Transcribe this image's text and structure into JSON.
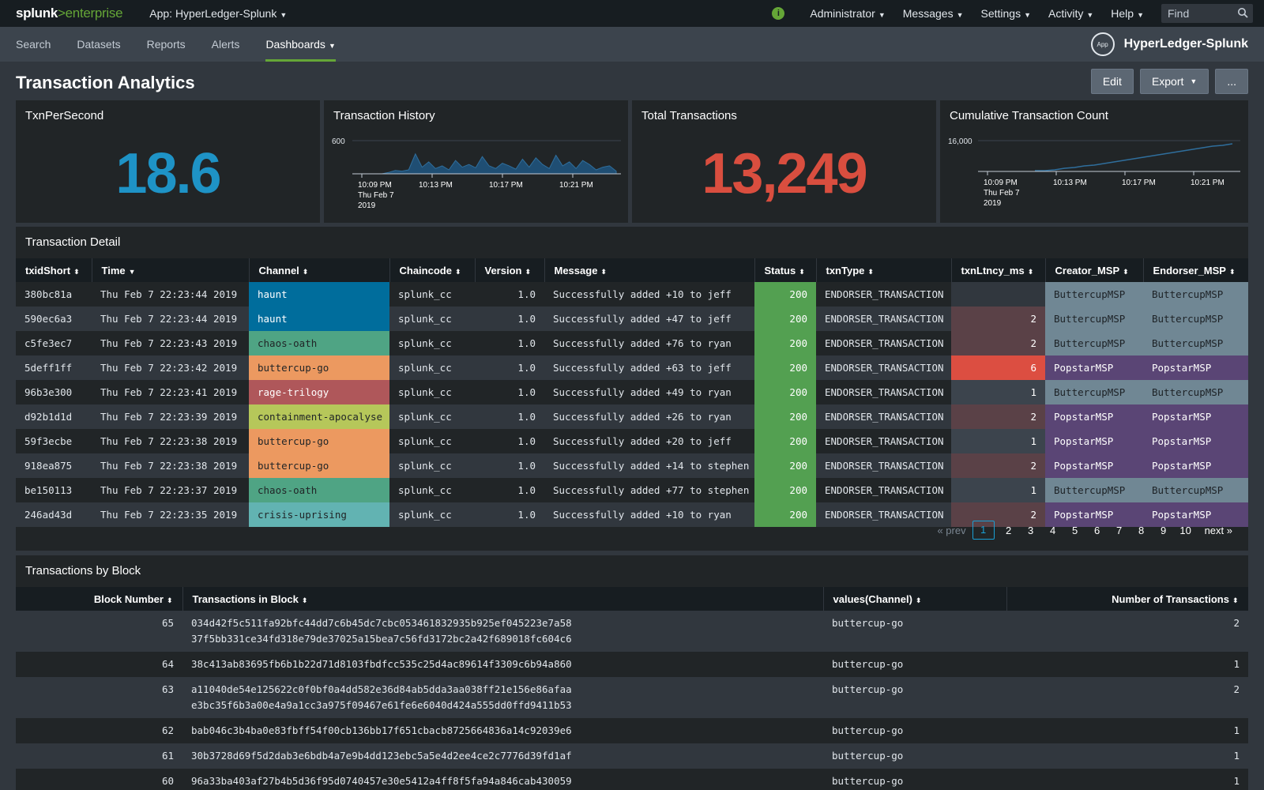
{
  "topbar": {
    "logo_main": "splunk",
    "logo_sep": ">",
    "logo_suffix": "enterprise",
    "app_menu": "App: HyperLedger-Splunk",
    "menus": [
      "Administrator",
      "Messages",
      "Settings",
      "Activity",
      "Help"
    ],
    "find_placeholder": "Find",
    "info_glyph": "i"
  },
  "nav": {
    "items": [
      "Search",
      "Datasets",
      "Reports",
      "Alerts",
      "Dashboards"
    ],
    "active_index": 4,
    "app_icon_label": "App",
    "app_name": "HyperLedger-Splunk"
  },
  "page": {
    "title": "Transaction Analytics",
    "buttons": {
      "edit": "Edit",
      "export": "Export",
      "more": "..."
    }
  },
  "panels": {
    "tps": {
      "title": "TxnPerSecond",
      "value": "18.6",
      "color": "#1e93c6"
    },
    "history": {
      "title": "Transaction History",
      "ytick": "600",
      "xticks": [
        "10:09 PM",
        "10:13 PM",
        "10:17 PM",
        "10:21 PM"
      ],
      "date_line1": "Thu Feb 7",
      "date_line2": "2019",
      "fill_color": "#1f4e73"
    },
    "total": {
      "title": "Total Transactions",
      "value": "13,249",
      "color": "#d94e3f"
    },
    "cumulative": {
      "title": "Cumulative Transaction Count",
      "ytick": "16,000",
      "xticks": [
        "10:09 PM",
        "10:13 PM",
        "10:17 PM",
        "10:21 PM"
      ],
      "date_line1": "Thu Feb 7",
      "date_line2": "2019",
      "line_color": "#2f6e9c"
    }
  },
  "detail": {
    "title": "Transaction Detail",
    "columns": [
      "txidShort",
      "Time",
      "Channel",
      "Chaincode",
      "Version",
      "Message",
      "Status",
      "txnType",
      "txnLtncy_ms",
      "Creator_MSP",
      "Endorser_MSP"
    ],
    "rows": [
      [
        "380bc81a",
        "Thu Feb  7 22:23:44 2019",
        "haunt",
        "splunk_cc",
        "1.0",
        "Successfully added +10 to jeff",
        "200",
        "ENDORSER_TRANSACTION",
        "",
        "ButtercupMSP",
        "ButtercupMSP"
      ],
      [
        "590ec6a3",
        "Thu Feb  7 22:23:44 2019",
        "haunt",
        "splunk_cc",
        "1.0",
        "Successfully added +47 to jeff",
        "200",
        "ENDORSER_TRANSACTION",
        "2",
        "ButtercupMSP",
        "ButtercupMSP"
      ],
      [
        "c5fe3ec7",
        "Thu Feb  7 22:23:43 2019",
        "chaos-oath",
        "splunk_cc",
        "1.0",
        "Successfully added +76 to ryan",
        "200",
        "ENDORSER_TRANSACTION",
        "2",
        "ButtercupMSP",
        "ButtercupMSP"
      ],
      [
        "5deff1ff",
        "Thu Feb  7 22:23:42 2019",
        "buttercup-go",
        "splunk_cc",
        "1.0",
        "Successfully added +63 to jeff",
        "200",
        "ENDORSER_TRANSACTION",
        "6",
        "PopstarMSP",
        "PopstarMSP"
      ],
      [
        "96b3e300",
        "Thu Feb  7 22:23:41 2019",
        "rage-trilogy",
        "splunk_cc",
        "1.0",
        "Successfully added +49 to ryan",
        "200",
        "ENDORSER_TRANSACTION",
        "1",
        "ButtercupMSP",
        "ButtercupMSP"
      ],
      [
        "d92b1d1d",
        "Thu Feb  7 22:23:39 2019",
        "containment-apocalyse",
        "splunk_cc",
        "1.0",
        "Successfully added +26 to ryan",
        "200",
        "ENDORSER_TRANSACTION",
        "2",
        "PopstarMSP",
        "PopstarMSP"
      ],
      [
        "59f3ecbe",
        "Thu Feb  7 22:23:38 2019",
        "buttercup-go",
        "splunk_cc",
        "1.0",
        "Successfully added +20 to jeff",
        "200",
        "ENDORSER_TRANSACTION",
        "1",
        "PopstarMSP",
        "PopstarMSP"
      ],
      [
        "918ea875",
        "Thu Feb  7 22:23:38 2019",
        "buttercup-go",
        "splunk_cc",
        "1.0",
        "Successfully added +14 to stephen",
        "200",
        "ENDORSER_TRANSACTION",
        "2",
        "PopstarMSP",
        "PopstarMSP"
      ],
      [
        "be150113",
        "Thu Feb  7 22:23:37 2019",
        "chaos-oath",
        "splunk_cc",
        "1.0",
        "Successfully added +77 to stephen",
        "200",
        "ENDORSER_TRANSACTION",
        "1",
        "ButtercupMSP",
        "ButtercupMSP"
      ],
      [
        "246ad43d",
        "Thu Feb  7 22:23:35 2019",
        "crisis-uprising",
        "splunk_cc",
        "1.0",
        "Successfully added +10 to ryan",
        "200",
        "ENDORSER_TRANSACTION",
        "2",
        "PopstarMSP",
        "PopstarMSP"
      ]
    ],
    "channel_colors": {
      "haunt": [
        "#006d9c",
        "#ffffff"
      ],
      "chaos-oath": [
        "#4fa484",
        "#212527"
      ],
      "buttercup-go": [
        "#ec9960",
        "#212527"
      ],
      "rage-trilogy": [
        "#af575a",
        "#ffffff"
      ],
      "containment-apocalyse": [
        "#b6c75a",
        "#212527"
      ],
      "crisis-uprising": [
        "#62b3b2",
        "#212527"
      ]
    },
    "status_color": "#53a051",
    "latency_colors": {
      "": "#31373e",
      "1": "#3c444d",
      "2": "#5a4147",
      "6": "#dc4e41"
    },
    "msp_colors": {
      "ButtercupMSP": [
        "#708794",
        "#1d2226"
      ],
      "PopstarMSP": [
        "#5a4575",
        "#ffffff"
      ]
    },
    "pagination": {
      "prev": "« prev",
      "pages": [
        "1",
        "2",
        "3",
        "4",
        "5",
        "6",
        "7",
        "8",
        "9",
        "10"
      ],
      "active": "1",
      "next": "next »"
    }
  },
  "blocks": {
    "title": "Transactions by Block",
    "columns": [
      "Block Number",
      "Transactions in Block",
      "values(Channel)",
      "Number of Transactions"
    ],
    "rows": [
      {
        "block": "65",
        "txns": [
          "034d42f5c511fa92bfc44dd7c6b45dc7cbc053461832935b925ef045223e7a58",
          "37f5bb331ce34fd318e79de37025a15bea7c56fd3172bc2a42f689018fc604c6"
        ],
        "channel": "buttercup-go",
        "count": "2"
      },
      {
        "block": "64",
        "txns": [
          "38c413ab83695fb6b1b22d71d8103fbdfcc535c25d4ac89614f3309c6b94a860"
        ],
        "channel": "buttercup-go",
        "count": "1"
      },
      {
        "block": "63",
        "txns": [
          "a11040de54e125622c0f0bf0a4dd582e36d84ab5dda3aa038ff21e156e86afaa",
          "e3bc35f6b3a00e4a9a1cc3a975f09467e61fe6e6040d424a555dd0ffd9411b53"
        ],
        "channel": "buttercup-go",
        "count": "2"
      },
      {
        "block": "62",
        "txns": [
          "bab046c3b4ba0e83fbff54f00cb136bb17f651cbacb8725664836a14c92039e6"
        ],
        "channel": "buttercup-go",
        "count": "1"
      },
      {
        "block": "61",
        "txns": [
          "30b3728d69f5d2dab3e6bdb4a7e9b4dd123ebc5a5e4d2ee4ce2c7776d39fd1af"
        ],
        "channel": "buttercup-go",
        "count": "1"
      },
      {
        "block": "60",
        "txns": [
          "96a33ba403af27b4b5d36f95d0740457e30e5412a4ff8f5fa94a846cab430059"
        ],
        "channel": "buttercup-go",
        "count": "1"
      }
    ]
  }
}
